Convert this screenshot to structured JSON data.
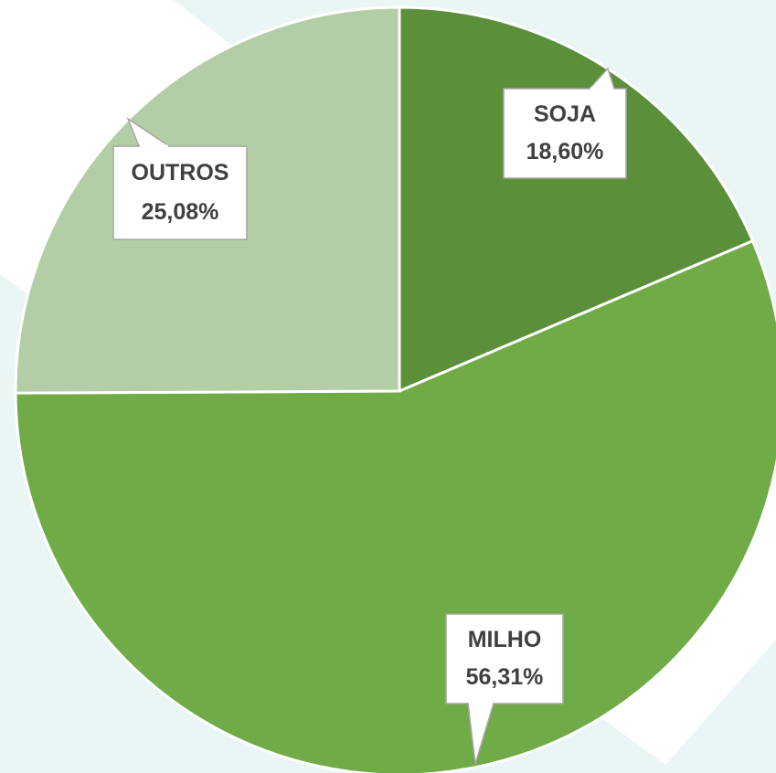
{
  "chart_data": {
    "type": "pie",
    "categories": [
      "SOJA",
      "MILHO",
      "OUTROS"
    ],
    "values": [
      18.6,
      56.31,
      25.08
    ],
    "value_labels": [
      "18,60%",
      "56,31%",
      "25,08%"
    ],
    "colors": [
      "#5b8f3a",
      "#70ab47",
      "#b3cda6"
    ]
  }
}
